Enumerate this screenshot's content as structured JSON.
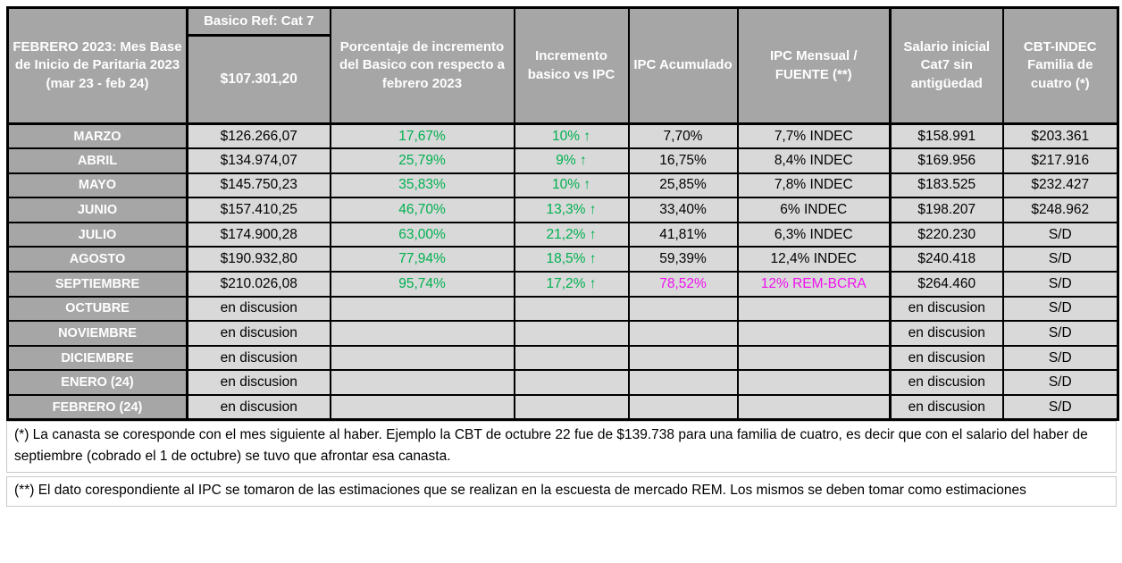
{
  "colors": {
    "header_bg": "#a6a6a6",
    "cell_bg": "#d9d9d9",
    "green": "#00b050",
    "magenta": "#ef10ef",
    "grid": "#000000"
  },
  "table": {
    "header": {
      "col1": "FEBRERO 2023: Mes Base de Inicio de Paritaria 2023 (mar 23 - feb 24)",
      "col2_top": "Basico Ref: Cat 7",
      "col2_value": "$107.301,20",
      "col3": "Porcentaje de incremento del Basico con respecto a febrero 2023",
      "col4": "Incremento basico vs IPC",
      "col5": "IPC Acumulado",
      "col6": "IPC Mensual / FUENTE (**)",
      "col7": "Salario inicial Cat7 sin antigüedad",
      "col8": "CBT-INDEC Familia de cuatro (*)"
    },
    "rows": [
      {
        "month": "MARZO",
        "cells": [
          {
            "t": "$126.266,07"
          },
          {
            "t": "17,67%",
            "c": "green"
          },
          {
            "t": "10% ↑",
            "c": "green"
          },
          {
            "t": "7,70%"
          },
          {
            "t": "7,7% INDEC"
          },
          {
            "t": "$158.991"
          },
          {
            "t": "$203.361"
          }
        ]
      },
      {
        "month": "ABRIL",
        "cells": [
          {
            "t": "$134.974,07"
          },
          {
            "t": "25,79%",
            "c": "green"
          },
          {
            "t": "9% ↑",
            "c": "green"
          },
          {
            "t": "16,75%"
          },
          {
            "t": "8,4% INDEC"
          },
          {
            "t": "$169.956"
          },
          {
            "t": "$217.916"
          }
        ]
      },
      {
        "month": "MAYO",
        "cells": [
          {
            "t": "$145.750,23"
          },
          {
            "t": "35,83%",
            "c": "green"
          },
          {
            "t": "10% ↑",
            "c": "green"
          },
          {
            "t": "25,85%"
          },
          {
            "t": "7,8% INDEC"
          },
          {
            "t": "$183.525"
          },
          {
            "t": "$232.427"
          }
        ]
      },
      {
        "month": "JUNIO",
        "cells": [
          {
            "t": "$157.410,25"
          },
          {
            "t": "46,70%",
            "c": "green"
          },
          {
            "t": "13,3% ↑",
            "c": "green"
          },
          {
            "t": "33,40%"
          },
          {
            "t": "6% INDEC"
          },
          {
            "t": "$198.207"
          },
          {
            "t": "$248.962"
          }
        ]
      },
      {
        "month": "JULIO",
        "cells": [
          {
            "t": "$174.900,28"
          },
          {
            "t": "63,00%",
            "c": "green"
          },
          {
            "t": "21,2% ↑",
            "c": "green"
          },
          {
            "t": "41,81%"
          },
          {
            "t": "6,3% INDEC"
          },
          {
            "t": "$220.230"
          },
          {
            "t": "S/D"
          }
        ]
      },
      {
        "month": "AGOSTO",
        "cells": [
          {
            "t": "$190.932,80"
          },
          {
            "t": "77,94%",
            "c": "green"
          },
          {
            "t": "18,5% ↑",
            "c": "green"
          },
          {
            "t": "59,39%"
          },
          {
            "t": "12,4% INDEC"
          },
          {
            "t": "$240.418"
          },
          {
            "t": "S/D"
          }
        ]
      },
      {
        "month": "SEPTIEMBRE",
        "cells": [
          {
            "t": "$210.026,08"
          },
          {
            "t": "95,74%",
            "c": "green"
          },
          {
            "t": "17,2% ↑",
            "c": "green"
          },
          {
            "t": "78,52%",
            "c": "magenta"
          },
          {
            "t": "12% REM-BCRA",
            "c": "magenta"
          },
          {
            "t": "$264.460"
          },
          {
            "t": "S/D"
          }
        ]
      },
      {
        "month": "OCTUBRE",
        "cells": [
          {
            "t": "en discusion"
          },
          {
            "t": ""
          },
          {
            "t": ""
          },
          {
            "t": ""
          },
          {
            "t": ""
          },
          {
            "t": "en discusion"
          },
          {
            "t": "S/D"
          }
        ]
      },
      {
        "month": "NOVIEMBRE",
        "cells": [
          {
            "t": "en discusion"
          },
          {
            "t": ""
          },
          {
            "t": ""
          },
          {
            "t": ""
          },
          {
            "t": ""
          },
          {
            "t": "en discusion"
          },
          {
            "t": "S/D"
          }
        ]
      },
      {
        "month": "DICIEMBRE",
        "cells": [
          {
            "t": "en discusion"
          },
          {
            "t": ""
          },
          {
            "t": ""
          },
          {
            "t": ""
          },
          {
            "t": ""
          },
          {
            "t": "en discusion"
          },
          {
            "t": "S/D"
          }
        ]
      },
      {
        "month": "ENERO (24)",
        "cells": [
          {
            "t": "en discusion"
          },
          {
            "t": ""
          },
          {
            "t": ""
          },
          {
            "t": ""
          },
          {
            "t": ""
          },
          {
            "t": "en discusion"
          },
          {
            "t": "S/D"
          }
        ]
      },
      {
        "month": "FEBRERO (24)",
        "cells": [
          {
            "t": "en discusion"
          },
          {
            "t": ""
          },
          {
            "t": ""
          },
          {
            "t": ""
          },
          {
            "t": ""
          },
          {
            "t": "en discusion"
          },
          {
            "t": "S/D"
          }
        ]
      }
    ]
  },
  "footnotes": [
    "(*) La canasta se coresponde con el mes siguiente al haber. Ejemplo la CBT de octubre 22 fue de $139.738 para una familia de cuatro, es decir que con el salario del haber de septiembre (cobrado el 1 de octubre) se tuvo que afrontar esa canasta.",
    "(**) El dato corespondiente al IPC se tomaron de las estimaciones que se realizan en la escuesta de mercado REM. Los mismos se deben tomar como estimaciones"
  ]
}
